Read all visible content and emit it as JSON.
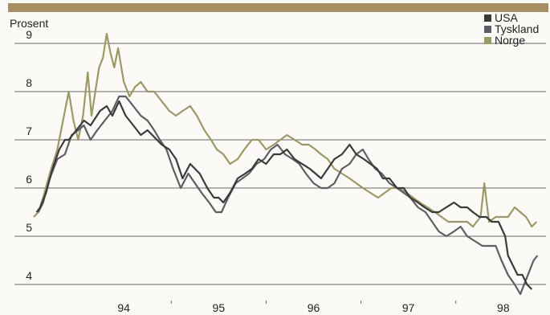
{
  "chart_data": {
    "type": "line",
    "title": "",
    "ylabel": "Prosent",
    "xlabel": "",
    "y_ticks": [
      4,
      5,
      6,
      7,
      8,
      9
    ],
    "ylim": [
      3.6,
      9.5
    ],
    "x_ticks": [
      "94",
      "95",
      "96",
      "97",
      "98"
    ],
    "xlim": [
      1993.5,
      1998.95
    ],
    "grid": "horizontal",
    "legend": "top-right",
    "colors": {
      "header_bar": "#a88f60",
      "grid": "#666666",
      "USA": "#3a3a3c",
      "Tyskland": "#5d5d63",
      "Norge": "#9a9a62"
    },
    "series": [
      {
        "name": "USA",
        "x": [
          1993.58,
          1993.62,
          1993.68,
          1993.75,
          1993.82,
          1993.88,
          1993.92,
          1993.96,
          1994.0,
          1994.08,
          1994.15,
          1994.25,
          1994.32,
          1994.38,
          1994.45,
          1994.52,
          1994.6,
          1994.68,
          1994.75,
          1994.85,
          1994.9,
          1994.98,
          1995.05,
          1995.12,
          1995.2,
          1995.3,
          1995.38,
          1995.45,
          1995.5,
          1995.55,
          1995.62,
          1995.7,
          1995.78,
          1995.85,
          1995.92,
          1996.0,
          1996.08,
          1996.15,
          1996.22,
          1996.3,
          1996.38,
          1996.46,
          1996.52,
          1996.58,
          1996.65,
          1996.72,
          1996.8,
          1996.88,
          1996.95,
          1997.03,
          1997.1,
          1997.17,
          1997.23,
          1997.3,
          1997.38,
          1997.45,
          1997.52,
          1997.6,
          1997.67,
          1997.75,
          1997.82,
          1997.9,
          1997.98,
          1998.05,
          1998.12,
          1998.18,
          1998.25,
          1998.32,
          1998.38,
          1998.45,
          1998.52,
          1998.55,
          1998.6,
          1998.65,
          1998.7,
          1998.75,
          1998.8
        ],
        "values": [
          5.5,
          5.6,
          5.9,
          6.4,
          6.8,
          7.0,
          7.0,
          7.1,
          7.2,
          7.4,
          7.3,
          7.6,
          7.7,
          7.5,
          7.8,
          7.5,
          7.3,
          7.1,
          7.2,
          7.0,
          6.9,
          6.8,
          6.6,
          6.2,
          6.5,
          6.3,
          6.0,
          5.8,
          5.8,
          5.7,
          5.9,
          6.2,
          6.3,
          6.4,
          6.6,
          6.5,
          6.7,
          6.7,
          6.8,
          6.6,
          6.5,
          6.4,
          6.3,
          6.2,
          6.4,
          6.6,
          6.7,
          6.9,
          6.7,
          6.6,
          6.5,
          6.4,
          6.2,
          6.2,
          6.0,
          6.0,
          5.8,
          5.7,
          5.6,
          5.5,
          5.5,
          5.6,
          5.7,
          5.6,
          5.6,
          5.5,
          5.4,
          5.4,
          5.3,
          5.3,
          5.0,
          4.6,
          4.4,
          4.2,
          4.2,
          4.0,
          3.9
        ]
      },
      {
        "name": "Tyskland",
        "x": [
          1993.6,
          1993.65,
          1993.72,
          1993.8,
          1993.88,
          1993.95,
          1994.02,
          1994.08,
          1994.15,
          1994.22,
          1994.3,
          1994.38,
          1994.45,
          1994.52,
          1994.6,
          1994.68,
          1994.75,
          1994.82,
          1994.88,
          1994.95,
          1995.02,
          1995.1,
          1995.18,
          1995.25,
          1995.32,
          1995.4,
          1995.47,
          1995.53,
          1995.6,
          1995.68,
          1995.75,
          1995.82,
          1995.9,
          1995.98,
          1996.05,
          1996.12,
          1996.2,
          1996.28,
          1996.35,
          1996.42,
          1996.5,
          1996.58,
          1996.65,
          1996.72,
          1996.8,
          1996.88,
          1996.95,
          1997.02,
          1997.08,
          1997.15,
          1997.22,
          1997.3,
          1997.38,
          1997.45,
          1997.52,
          1997.6,
          1997.68,
          1997.75,
          1997.82,
          1997.9,
          1997.98,
          1998.05,
          1998.12,
          1998.2,
          1998.28,
          1998.35,
          1998.42,
          1998.48,
          1998.55,
          1998.62,
          1998.68,
          1998.72,
          1998.78,
          1998.82,
          1998.86
        ],
        "values": [
          5.5,
          5.7,
          6.2,
          6.6,
          6.7,
          7.1,
          7.2,
          7.3,
          7.0,
          7.2,
          7.4,
          7.6,
          7.9,
          7.9,
          7.7,
          7.5,
          7.4,
          7.2,
          7.0,
          6.8,
          6.4,
          6.0,
          6.3,
          6.1,
          5.9,
          5.7,
          5.5,
          5.5,
          5.8,
          6.1,
          6.2,
          6.3,
          6.5,
          6.6,
          6.8,
          6.9,
          6.7,
          6.6,
          6.5,
          6.3,
          6.1,
          6.0,
          6.0,
          6.1,
          6.4,
          6.5,
          6.7,
          6.8,
          6.6,
          6.4,
          6.3,
          6.1,
          6.0,
          5.9,
          5.8,
          5.6,
          5.5,
          5.3,
          5.1,
          5.0,
          5.1,
          5.2,
          5.0,
          4.9,
          4.8,
          4.8,
          4.8,
          4.5,
          4.2,
          4.0,
          3.8,
          4.0,
          4.3,
          4.5,
          4.6
        ]
      },
      {
        "name": "Norge",
        "x": [
          1993.55,
          1993.6,
          1993.65,
          1993.72,
          1993.8,
          1993.86,
          1993.92,
          1993.97,
          1994.02,
          1994.07,
          1994.12,
          1994.16,
          1994.2,
          1994.24,
          1994.28,
          1994.32,
          1994.36,
          1994.4,
          1994.44,
          1994.5,
          1994.56,
          1994.62,
          1994.68,
          1994.75,
          1994.82,
          1994.9,
          1994.98,
          1995.05,
          1995.12,
          1995.2,
          1995.27,
          1995.35,
          1995.42,
          1995.48,
          1995.55,
          1995.62,
          1995.7,
          1995.77,
          1995.85,
          1995.92,
          1996.0,
          1996.08,
          1996.15,
          1996.22,
          1996.3,
          1996.38,
          1996.45,
          1996.52,
          1996.58,
          1996.65,
          1996.72,
          1996.8,
          1996.88,
          1996.95,
          1997.02,
          1997.1,
          1997.18,
          1997.25,
          1997.32,
          1997.4,
          1997.48,
          1997.55,
          1997.62,
          1997.7,
          1997.78,
          1997.85,
          1997.92,
          1997.98,
          1998.05,
          1998.12,
          1998.18,
          1998.22,
          1998.26,
          1998.3,
          1998.35,
          1998.42,
          1998.48,
          1998.55,
          1998.62,
          1998.68,
          1998.74,
          1998.8,
          1998.85
        ],
        "values": [
          5.4,
          5.5,
          5.8,
          6.3,
          6.8,
          7.4,
          8.0,
          7.4,
          7.0,
          7.5,
          8.4,
          7.5,
          8.0,
          8.5,
          8.7,
          9.2,
          8.8,
          8.5,
          8.9,
          8.2,
          7.9,
          8.1,
          8.2,
          8.0,
          8.0,
          7.8,
          7.6,
          7.5,
          7.6,
          7.7,
          7.5,
          7.2,
          7.0,
          6.8,
          6.7,
          6.5,
          6.6,
          6.8,
          7.0,
          7.0,
          6.8,
          6.9,
          7.0,
          7.1,
          7.0,
          6.9,
          6.9,
          6.8,
          6.7,
          6.6,
          6.4,
          6.3,
          6.2,
          6.1,
          6.0,
          5.9,
          5.8,
          5.9,
          6.0,
          6.0,
          5.9,
          5.8,
          5.7,
          5.6,
          5.5,
          5.4,
          5.3,
          5.3,
          5.3,
          5.3,
          5.2,
          5.3,
          5.4,
          6.1,
          5.3,
          5.4,
          5.4,
          5.4,
          5.6,
          5.5,
          5.4,
          5.2,
          5.3
        ]
      }
    ]
  }
}
